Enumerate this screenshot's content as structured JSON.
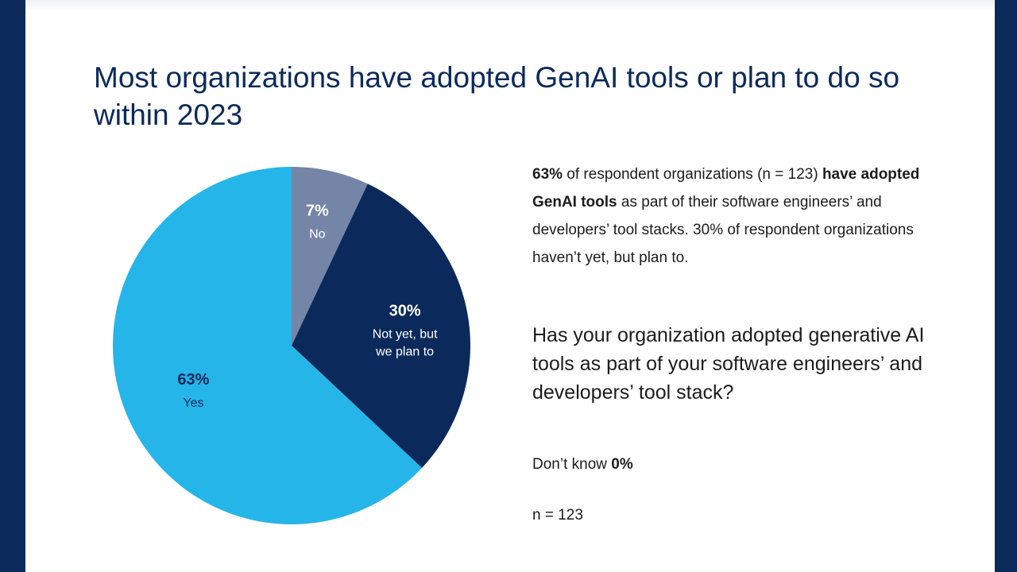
{
  "title": "Most organizations have adopted GenAI tools or plan to do so within 2023",
  "summary": {
    "pct": "63%",
    "text1": " of respondent organizations (n = 123) ",
    "bold": "have adopted GenAI tools",
    "text2": " as part of their software engineers’ and developers’ tool stacks. 30% of respondent organizations haven’t yet, but plan to."
  },
  "question": "Has your organization adopted generative AI tools as part of your software engineers’ and developers’ tool stack?",
  "dont_know": {
    "label": "Don’t know ",
    "value": "0%"
  },
  "sample": "n = 123",
  "colors": {
    "yes": "#25b5e9",
    "plan": "#0b2a5b",
    "no": "#7485a8",
    "background": "#0b2a5b"
  },
  "chart_data": {
    "type": "pie",
    "slices": [
      {
        "label": "No",
        "value": 7,
        "pct_label": "7%",
        "color": "#7485a8",
        "text_color": "#ffffff"
      },
      {
        "label": "Not yet, but we plan to",
        "value": 30,
        "pct_label": "30%",
        "color": "#0b2a5b",
        "text_color": "#ffffff"
      },
      {
        "label": "Yes",
        "value": 63,
        "pct_label": "63%",
        "color": "#25b5e9",
        "text_color": "#0b2a5b"
      }
    ],
    "start_angle_deg": 0,
    "direction": "clockwise"
  }
}
